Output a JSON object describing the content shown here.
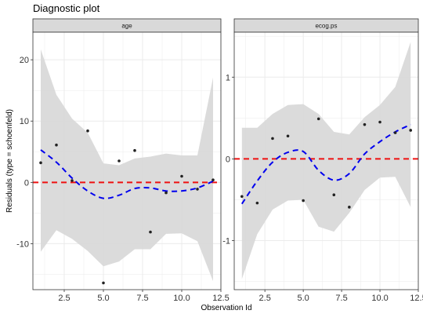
{
  "chart_data": {
    "type": "scatter",
    "title": "Diagnostic plot",
    "xlabel": "Observation Id",
    "ylabel": "Residuals (type = schoenfeld)",
    "grid": true,
    "colors": {
      "points": "#222222",
      "smooth": "#0000ee",
      "reference": "#ee1111",
      "band": "#d9d9d9",
      "strip": "#d9d9d9",
      "gridline": "#ebebeb"
    },
    "panels": [
      {
        "strip": "age",
        "xlim": [
          0.5,
          12.5
        ],
        "ylim": [
          -17.5,
          24.5
        ],
        "xticks": [
          2.5,
          5.0,
          7.5,
          10.0,
          12.5
        ],
        "xtick_labels": [
          "2.5",
          "5.0",
          "7.5",
          "10.0",
          "12.5"
        ],
        "yticks": [
          -10,
          0,
          10,
          20
        ],
        "ytick_labels": [
          "-10",
          "0",
          "10",
          "20"
        ],
        "reference_y": 0,
        "points": [
          {
            "x": 1,
            "y": 3.2
          },
          {
            "x": 2,
            "y": 6.1
          },
          {
            "x": 3,
            "y": 0.3
          },
          {
            "x": 4,
            "y": 8.4
          },
          {
            "x": 5,
            "y": -16.4
          },
          {
            "x": 6,
            "y": 3.5
          },
          {
            "x": 7,
            "y": 5.2
          },
          {
            "x": 8,
            "y": -8.1
          },
          {
            "x": 9,
            "y": -1.7
          },
          {
            "x": 10,
            "y": 1.0
          },
          {
            "x": 11,
            "y": -1.1
          },
          {
            "x": 12,
            "y": 0.4
          }
        ],
        "smooth": [
          {
            "x": 1,
            "y": 5.3
          },
          {
            "x": 2,
            "y": 3.3
          },
          {
            "x": 3,
            "y": 0.7
          },
          {
            "x": 4,
            "y": -1.4
          },
          {
            "x": 5,
            "y": -2.6
          },
          {
            "x": 6,
            "y": -2.1
          },
          {
            "x": 7,
            "y": -1.0
          },
          {
            "x": 8,
            "y": -0.9
          },
          {
            "x": 9,
            "y": -1.4
          },
          {
            "x": 10,
            "y": -1.4
          },
          {
            "x": 11,
            "y": -0.9
          },
          {
            "x": 12,
            "y": 0.2
          }
        ],
        "band_upper": [
          21.7,
          14.3,
          10.4,
          8.1,
          3.1,
          2.8,
          3.9,
          4.2,
          4.7,
          4.4,
          4.4,
          17.1
        ],
        "band_lower": [
          -11.3,
          -7.8,
          -9.2,
          -11.2,
          -13.7,
          -12.9,
          -10.9,
          -10.9,
          -8.4,
          -8.3,
          -9.6,
          -16.1
        ]
      },
      {
        "strip": "ecog.ps",
        "xlim": [
          0.5,
          12.5
        ],
        "ylim": [
          -1.6,
          1.55
        ],
        "xticks": [
          2.5,
          5.0,
          7.5,
          10.0,
          12.5
        ],
        "xtick_labels": [
          "2.5",
          "5.0",
          "7.5",
          "10.0",
          "12.5"
        ],
        "yticks": [
          -1,
          0,
          1
        ],
        "ytick_labels": [
          "-1",
          "0",
          "1"
        ],
        "reference_y": 0,
        "points": [
          {
            "x": 1,
            "y": -0.46
          },
          {
            "x": 2,
            "y": -0.54
          },
          {
            "x": 3,
            "y": 0.25
          },
          {
            "x": 4,
            "y": 0.28
          },
          {
            "x": 5,
            "y": -0.51
          },
          {
            "x": 6,
            "y": 0.49
          },
          {
            "x": 7,
            "y": -0.44
          },
          {
            "x": 8,
            "y": -0.59
          },
          {
            "x": 9,
            "y": 0.42
          },
          {
            "x": 10,
            "y": 0.45
          },
          {
            "x": 11,
            "y": 0.32
          },
          {
            "x": 12,
            "y": 0.35
          }
        ],
        "smooth": [
          {
            "x": 1,
            "y": -0.55
          },
          {
            "x": 2,
            "y": -0.27
          },
          {
            "x": 3,
            "y": -0.04
          },
          {
            "x": 4,
            "y": 0.08
          },
          {
            "x": 5,
            "y": 0.09
          },
          {
            "x": 6,
            "y": -0.14
          },
          {
            "x": 7,
            "y": -0.26
          },
          {
            "x": 8,
            "y": -0.18
          },
          {
            "x": 9,
            "y": 0.06
          },
          {
            "x": 10,
            "y": 0.21
          },
          {
            "x": 11,
            "y": 0.33
          },
          {
            "x": 12,
            "y": 0.42
          }
        ],
        "band_upper": [
          0.38,
          0.38,
          0.55,
          0.66,
          0.67,
          0.55,
          0.33,
          0.3,
          0.51,
          0.66,
          0.88,
          1.43
        ],
        "band_lower": [
          -1.47,
          -0.92,
          -0.62,
          -0.51,
          -0.5,
          -0.83,
          -0.89,
          -0.66,
          -0.38,
          -0.23,
          -0.22,
          -0.59
        ]
      }
    ]
  }
}
